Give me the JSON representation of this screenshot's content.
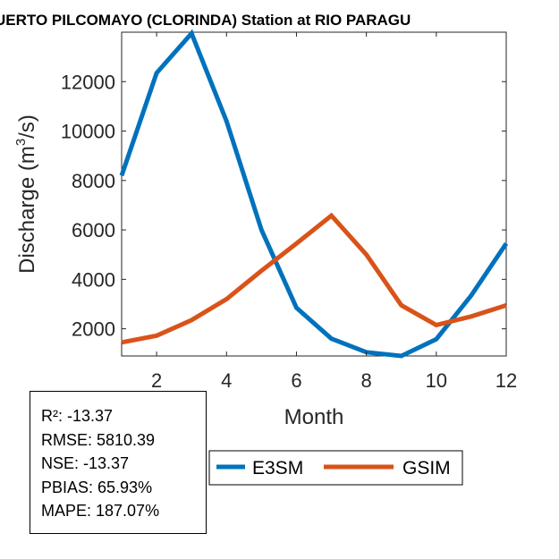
{
  "chart_data": {
    "type": "line",
    "title": "UERTO PILCOMAYO (CLORINDA)  Station at  RIO PARAGU",
    "xlabel": "Month",
    "ylabel_main": "Discharge (m",
    "ylabel_sup": "3",
    "ylabel_tail": "/s)",
    "xlim": [
      1,
      12
    ],
    "ylim": [
      900,
      14000
    ],
    "xticks": [
      2,
      4,
      6,
      8,
      10,
      12
    ],
    "yticks": [
      2000,
      4000,
      6000,
      8000,
      10000,
      12000
    ],
    "x": [
      1,
      2,
      3,
      4,
      5,
      6,
      7,
      8,
      9,
      10,
      11,
      12
    ],
    "series": [
      {
        "name": "E3SM",
        "color": "#0072BD",
        "values": [
          8200,
          12350,
          13950,
          10400,
          6000,
          2850,
          1600,
          1050,
          900,
          1580,
          3350,
          5450
        ]
      },
      {
        "name": "GSIM",
        "color": "#D95319",
        "values": [
          1450,
          1720,
          2350,
          3200,
          4350,
          5450,
          6580,
          5000,
          2950,
          2150,
          2500,
          2950
        ]
      }
    ],
    "legend_position": "below-right"
  },
  "stats": [
    "R²: -13.37",
    "RMSE: 5810.39",
    "NSE: -13.37",
    "PBIAS: 65.93%",
    "MAPE: 187.07%"
  ]
}
